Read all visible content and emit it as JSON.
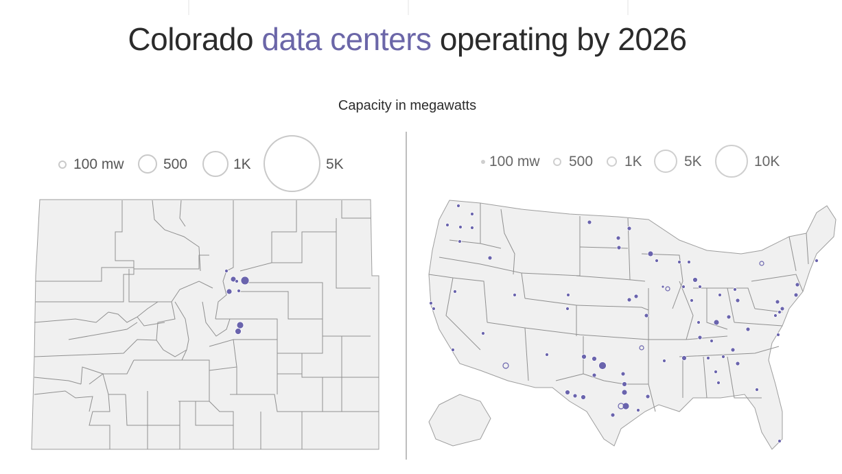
{
  "title": {
    "prefix": "Colorado",
    "highlight": "data centers",
    "suffix": "operating by 2026"
  },
  "subtitle": "Capacity in megawatts",
  "legend_colorado": [
    {
      "label": "100 mw",
      "mw": 100
    },
    {
      "label": "500",
      "mw": 500
    },
    {
      "label": "1K",
      "mw": 1000
    },
    {
      "label": "5K",
      "mw": 5000
    }
  ],
  "legend_us": [
    {
      "label": "100 mw",
      "mw": 100
    },
    {
      "label": "500",
      "mw": 500
    },
    {
      "label": "1K",
      "mw": 1000
    },
    {
      "label": "5K",
      "mw": 5000
    },
    {
      "label": "10K",
      "mw": 10000
    }
  ],
  "colors": {
    "accent": "#6b66a8",
    "marker": "#6a64ad",
    "land": "#f0f0f0",
    "border": "#9d9d9d",
    "divider": "#bdbdbd"
  }
}
